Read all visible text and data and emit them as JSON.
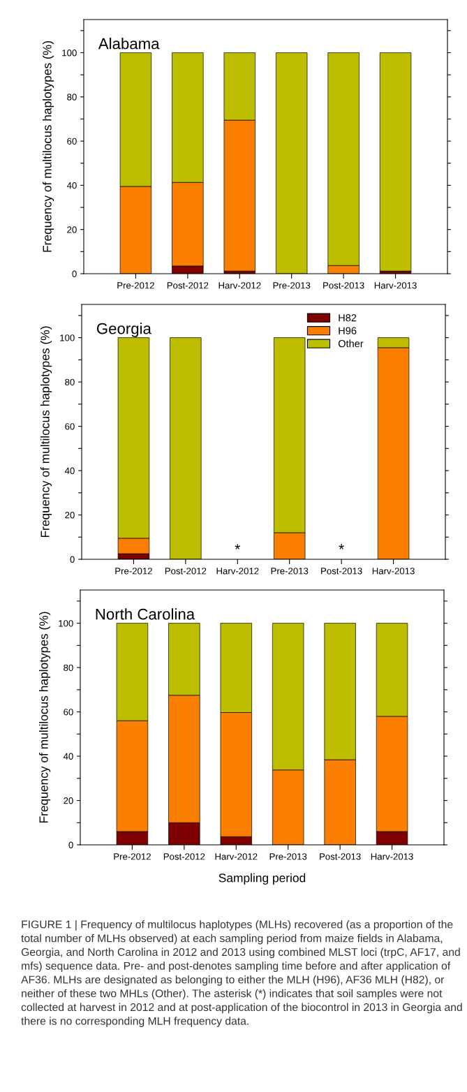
{
  "chart_data": [
    {
      "type": "bar",
      "title": "Alabama",
      "ylabel": "Frequency of multilocus haplotypes (%)",
      "stacked": true,
      "categories": [
        "Pre-2012",
        "Post-2012",
        "Harv-2012",
        "Pre-2013",
        "Post-2013",
        "Harv-2013"
      ],
      "series": [
        {
          "color": "#7f0000",
          "values": [
            0,
            3.5,
            1.2,
            0,
            0,
            1.2
          ]
        },
        {
          "color": "#fa7f00",
          "values": [
            39.5,
            37.8,
            68.3,
            0,
            3.7,
            0
          ]
        },
        {
          "color": "#bebe00",
          "values": [
            60.5,
            58.7,
            30.5,
            100,
            96.3,
            98.8
          ]
        }
      ],
      "ylim": [
        0,
        115
      ],
      "yticks": [
        0,
        {
          "value": 10,
          "label": null
        },
        20,
        {
          "value": 30,
          "label": null
        },
        40,
        {
          "value": 50,
          "label": null
        },
        60,
        {
          "value": 70,
          "label": null
        },
        80,
        {
          "value": 90,
          "label": null
        },
        100,
        {
          "value": 110,
          "label": null
        }
      ],
      "grid": false,
      "legend": false
    },
    {
      "type": "bar",
      "title": "Georgia",
      "ylabel": "Frequency of multilocus haplotypes (%)",
      "stacked": true,
      "categories": [
        "Pre-2012",
        "Post-2012",
        "Harv-2012",
        "Pre-2013",
        "Post-2013",
        "Harv-2013"
      ],
      "series": [
        {
          "name": "H82",
          "color": "#7f0000",
          "values": [
            2.5,
            0,
            null,
            0,
            null,
            0
          ]
        },
        {
          "name": "H96",
          "color": "#fa7f00",
          "values": [
            7,
            0,
            null,
            12,
            null,
            95.5
          ]
        },
        {
          "name": "Other",
          "color": "#bebe00",
          "values": [
            90.5,
            100,
            null,
            88,
            null,
            4.5
          ]
        }
      ],
      "annotations": [
        "*",
        "*"
      ],
      "ylim": [
        0,
        115
      ],
      "yticks": [
        0,
        {
          "value": 10,
          "label": null
        },
        20,
        {
          "value": 30,
          "label": null
        },
        40,
        {
          "value": 50,
          "label": null
        },
        60,
        {
          "value": 70,
          "label": null
        },
        80,
        {
          "value": 90,
          "label": null
        },
        100,
        {
          "value": 110,
          "label": null
        }
      ],
      "grid": false,
      "legend": "top right"
    },
    {
      "type": "bar",
      "title": "North Carolina",
      "ylabel": "Frequency of multilocus haplotypes (%)",
      "xlabel": "Sampling period",
      "stacked": true,
      "categories": [
        "Pre-2012",
        "Post-2012",
        "Harv-2012",
        "Pre-2013",
        "Post-2013",
        "Harv-2013"
      ],
      "series": [
        {
          "color": "#7f0000",
          "values": [
            6,
            10,
            3.7,
            0,
            0,
            6
          ]
        },
        {
          "color": "#fa7f00",
          "values": [
            50,
            57.5,
            56,
            33.8,
            38.4,
            52
          ]
        },
        {
          "color": "#bebe00",
          "values": [
            44,
            32.5,
            40.3,
            66.2,
            61.6,
            42
          ]
        }
      ],
      "annotations": [
        "FIGURE 1 | Frequency of multilocus haplotypes (MLHs) recovered (as a proportion of the total number of MLHs observed) at each sampling period from maize fields in Alabama, Georgia, and North Carolina in 2012 and 2013 using combined MLST loci (trpC, AF17, and mfs) sequence data. Pre- and post-denotes sampling time before and after application of AF36. MLHs are designated as belonging to either the MLH (H96), AF36 MLH (H82), or neither of these two MHLs (Other). The asterisk (*) indicates that soil samples were not collected at harvest in 2012 and at post-application of the biocontrol in 2013 in Georgia and there is no corresponding MLH frequency data."
      ],
      "ylim": [
        0,
        115
      ],
      "yticks": [
        0,
        {
          "value": 10,
          "label": null
        },
        20,
        {
          "value": 30,
          "label": null
        },
        40,
        {
          "value": 50,
          "label": null
        },
        60,
        {
          "value": 70,
          "label": null
        },
        80,
        {
          "value": 90,
          "label": null
        },
        100,
        {
          "value": 110,
          "label": null
        }
      ],
      "grid": false,
      "legend": false
    }
  ]
}
